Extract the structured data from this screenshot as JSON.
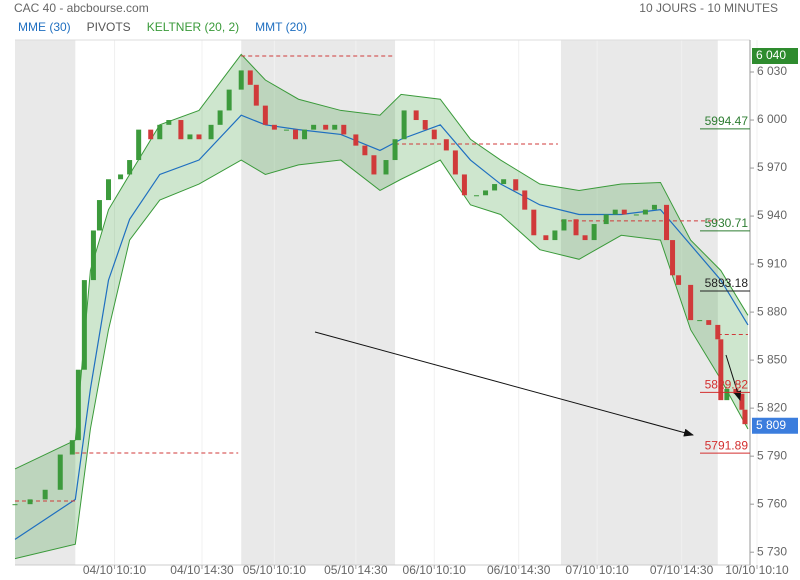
{
  "chart_data": {
    "type": "candlestick",
    "title": "CAC 40 - abcbourse.com",
    "subtitle": "10 JOURS - 10 MINUTES",
    "legend": [
      {
        "name": "MME (30)",
        "color": "#1f6fc0"
      },
      {
        "name": "PIVOTS",
        "color": "#555555"
      },
      {
        "name": "KELTNER (20, 2)",
        "color": "#3a9a3a"
      },
      {
        "name": "MMT (20)",
        "color": "#1f6fc0"
      }
    ],
    "xlim": [
      0,
      246
    ],
    "xticks": [
      {
        "value": 33,
        "label": "04/10 10:10"
      },
      {
        "value": 62,
        "label": "04/10 14:30"
      },
      {
        "value": 86,
        "label": "05/10 10:10"
      },
      {
        "value": 113,
        "label": "05/10 14:30"
      },
      {
        "value": 139,
        "label": "06/10 10:10"
      },
      {
        "value": 167,
        "label": "06/10 14:30"
      },
      {
        "value": 193,
        "label": "07/10 10:10"
      },
      {
        "value": 221,
        "label": "07/10 14:30"
      },
      {
        "value": 246,
        "label": "10/10 10:10"
      }
    ],
    "ylim": [
      5722,
      6050
    ],
    "yticks": [
      {
        "value": 5730,
        "label": "5 730"
      },
      {
        "value": 5760,
        "label": "5 760"
      },
      {
        "value": 5790,
        "label": "5 790"
      },
      {
        "value": 5820,
        "label": "5 820"
      },
      {
        "value": 5850,
        "label": "5 850"
      },
      {
        "value": 5880,
        "label": "5 880"
      },
      {
        "value": 5910,
        "label": "5 910"
      },
      {
        "value": 5940,
        "label": "5 940"
      },
      {
        "value": 5970,
        "label": "5 970"
      },
      {
        "value": 6000,
        "label": "6 000"
      },
      {
        "value": 6030,
        "label": "6 030"
      }
    ],
    "session_bands": [
      [
        0,
        20
      ],
      [
        75,
        126
      ],
      [
        181,
        233
      ]
    ],
    "up_color": "#3c9a3c",
    "down_color": "#d03a3a",
    "price": {
      "x": [
        0,
        5,
        10,
        15,
        19,
        21,
        23,
        26,
        28,
        31,
        35,
        38,
        41,
        45,
        48,
        51,
        55,
        58,
        61,
        65,
        68,
        71,
        75,
        78,
        80,
        83,
        86,
        90,
        93,
        96,
        99,
        103,
        106,
        109,
        113,
        116,
        119,
        123,
        126,
        129,
        133,
        136,
        139,
        143,
        146,
        149,
        153,
        156,
        159,
        162,
        166,
        169,
        172,
        176,
        179,
        182,
        186,
        189,
        192,
        196,
        199,
        202,
        206,
        209,
        212,
        216,
        218,
        220,
        224,
        227,
        230,
        233,
        234,
        236,
        239,
        241,
        242
      ],
      "close": [
        5760,
        5763,
        5769,
        5791,
        5800,
        5844,
        5900,
        5931,
        5950,
        5963,
        5966,
        5975,
        5994,
        5988,
        5997,
        6000,
        5988,
        5991,
        5988,
        5997,
        6006,
        6019,
        6031,
        6022,
        6009,
        5997,
        5994,
        5994,
        5988,
        5994,
        5997,
        5994,
        5997,
        5991,
        5984,
        5978,
        5966,
        5975,
        5988,
        6006,
        6000,
        5994,
        5988,
        5981,
        5966,
        5953,
        5953,
        5956,
        5960,
        5963,
        5956,
        5944,
        5928,
        5925,
        5931,
        5938,
        5928,
        5925,
        5935,
        5941,
        5944,
        5941,
        5941,
        5944,
        5947,
        5925,
        5903,
        5897,
        5875,
        5875,
        5872,
        5863,
        5825,
        5832,
        5829,
        5819,
        5810
      ]
    },
    "keltner": {
      "color": "#3a9a3a",
      "x": [
        0,
        20,
        25,
        31,
        38,
        48,
        61,
        75,
        83,
        94,
        108,
        121,
        128,
        141,
        151,
        161,
        174,
        187,
        201,
        214,
        224,
        234,
        243
      ],
      "upper": [
        5782,
        5800,
        5906,
        5944,
        5966,
        5997,
        6006,
        6041,
        6025,
        6013,
        6006,
        6003,
        6016,
        6013,
        5988,
        5975,
        5960,
        5956,
        5960,
        5961,
        5925,
        5906,
        5878
      ],
      "lower": [
        5726,
        5735,
        5807,
        5869,
        5925,
        5950,
        5960,
        5975,
        5966,
        5972,
        5975,
        5956,
        5963,
        5975,
        5947,
        5941,
        5919,
        5913,
        5928,
        5925,
        5869,
        5838,
        5807
      ],
      "mme": [
        5738,
        5763,
        5832,
        5900,
        5938,
        5966,
        5975,
        6003,
        5997,
        5994,
        5991,
        5981,
        5988,
        5997,
        5975,
        5960,
        5947,
        5941,
        5941,
        5944,
        5922,
        5900,
        5872
      ]
    },
    "pivots": [
      {
        "value": 5762,
        "x": [
          0,
          20
        ]
      },
      {
        "value": 5792,
        "x": [
          20,
          74
        ]
      },
      {
        "value": 6040,
        "x": [
          75,
          126
        ]
      },
      {
        "value": 5985,
        "x": [
          126,
          180
        ]
      },
      {
        "value": 5937,
        "x": [
          181,
          233
        ]
      },
      {
        "value": 5866,
        "x": [
          233,
          243
        ]
      }
    ],
    "pivot_color": "#d03a3a",
    "levels": [
      {
        "value": 5994.47,
        "color": "#2e7d32"
      },
      {
        "value": 5930.71,
        "color": "#2e7d32"
      },
      {
        "value": 5893.18,
        "color": "#222222"
      },
      {
        "value": 5829.82,
        "color": "#d32f2f"
      },
      {
        "value": 5791.89,
        "color": "#d32f2f"
      }
    ],
    "price_tags": [
      {
        "value": 6040,
        "label": "6 040",
        "color": "#2e8b2e"
      },
      {
        "value": 5809,
        "label": "5 809",
        "color": "#3b7ddd"
      }
    ]
  }
}
